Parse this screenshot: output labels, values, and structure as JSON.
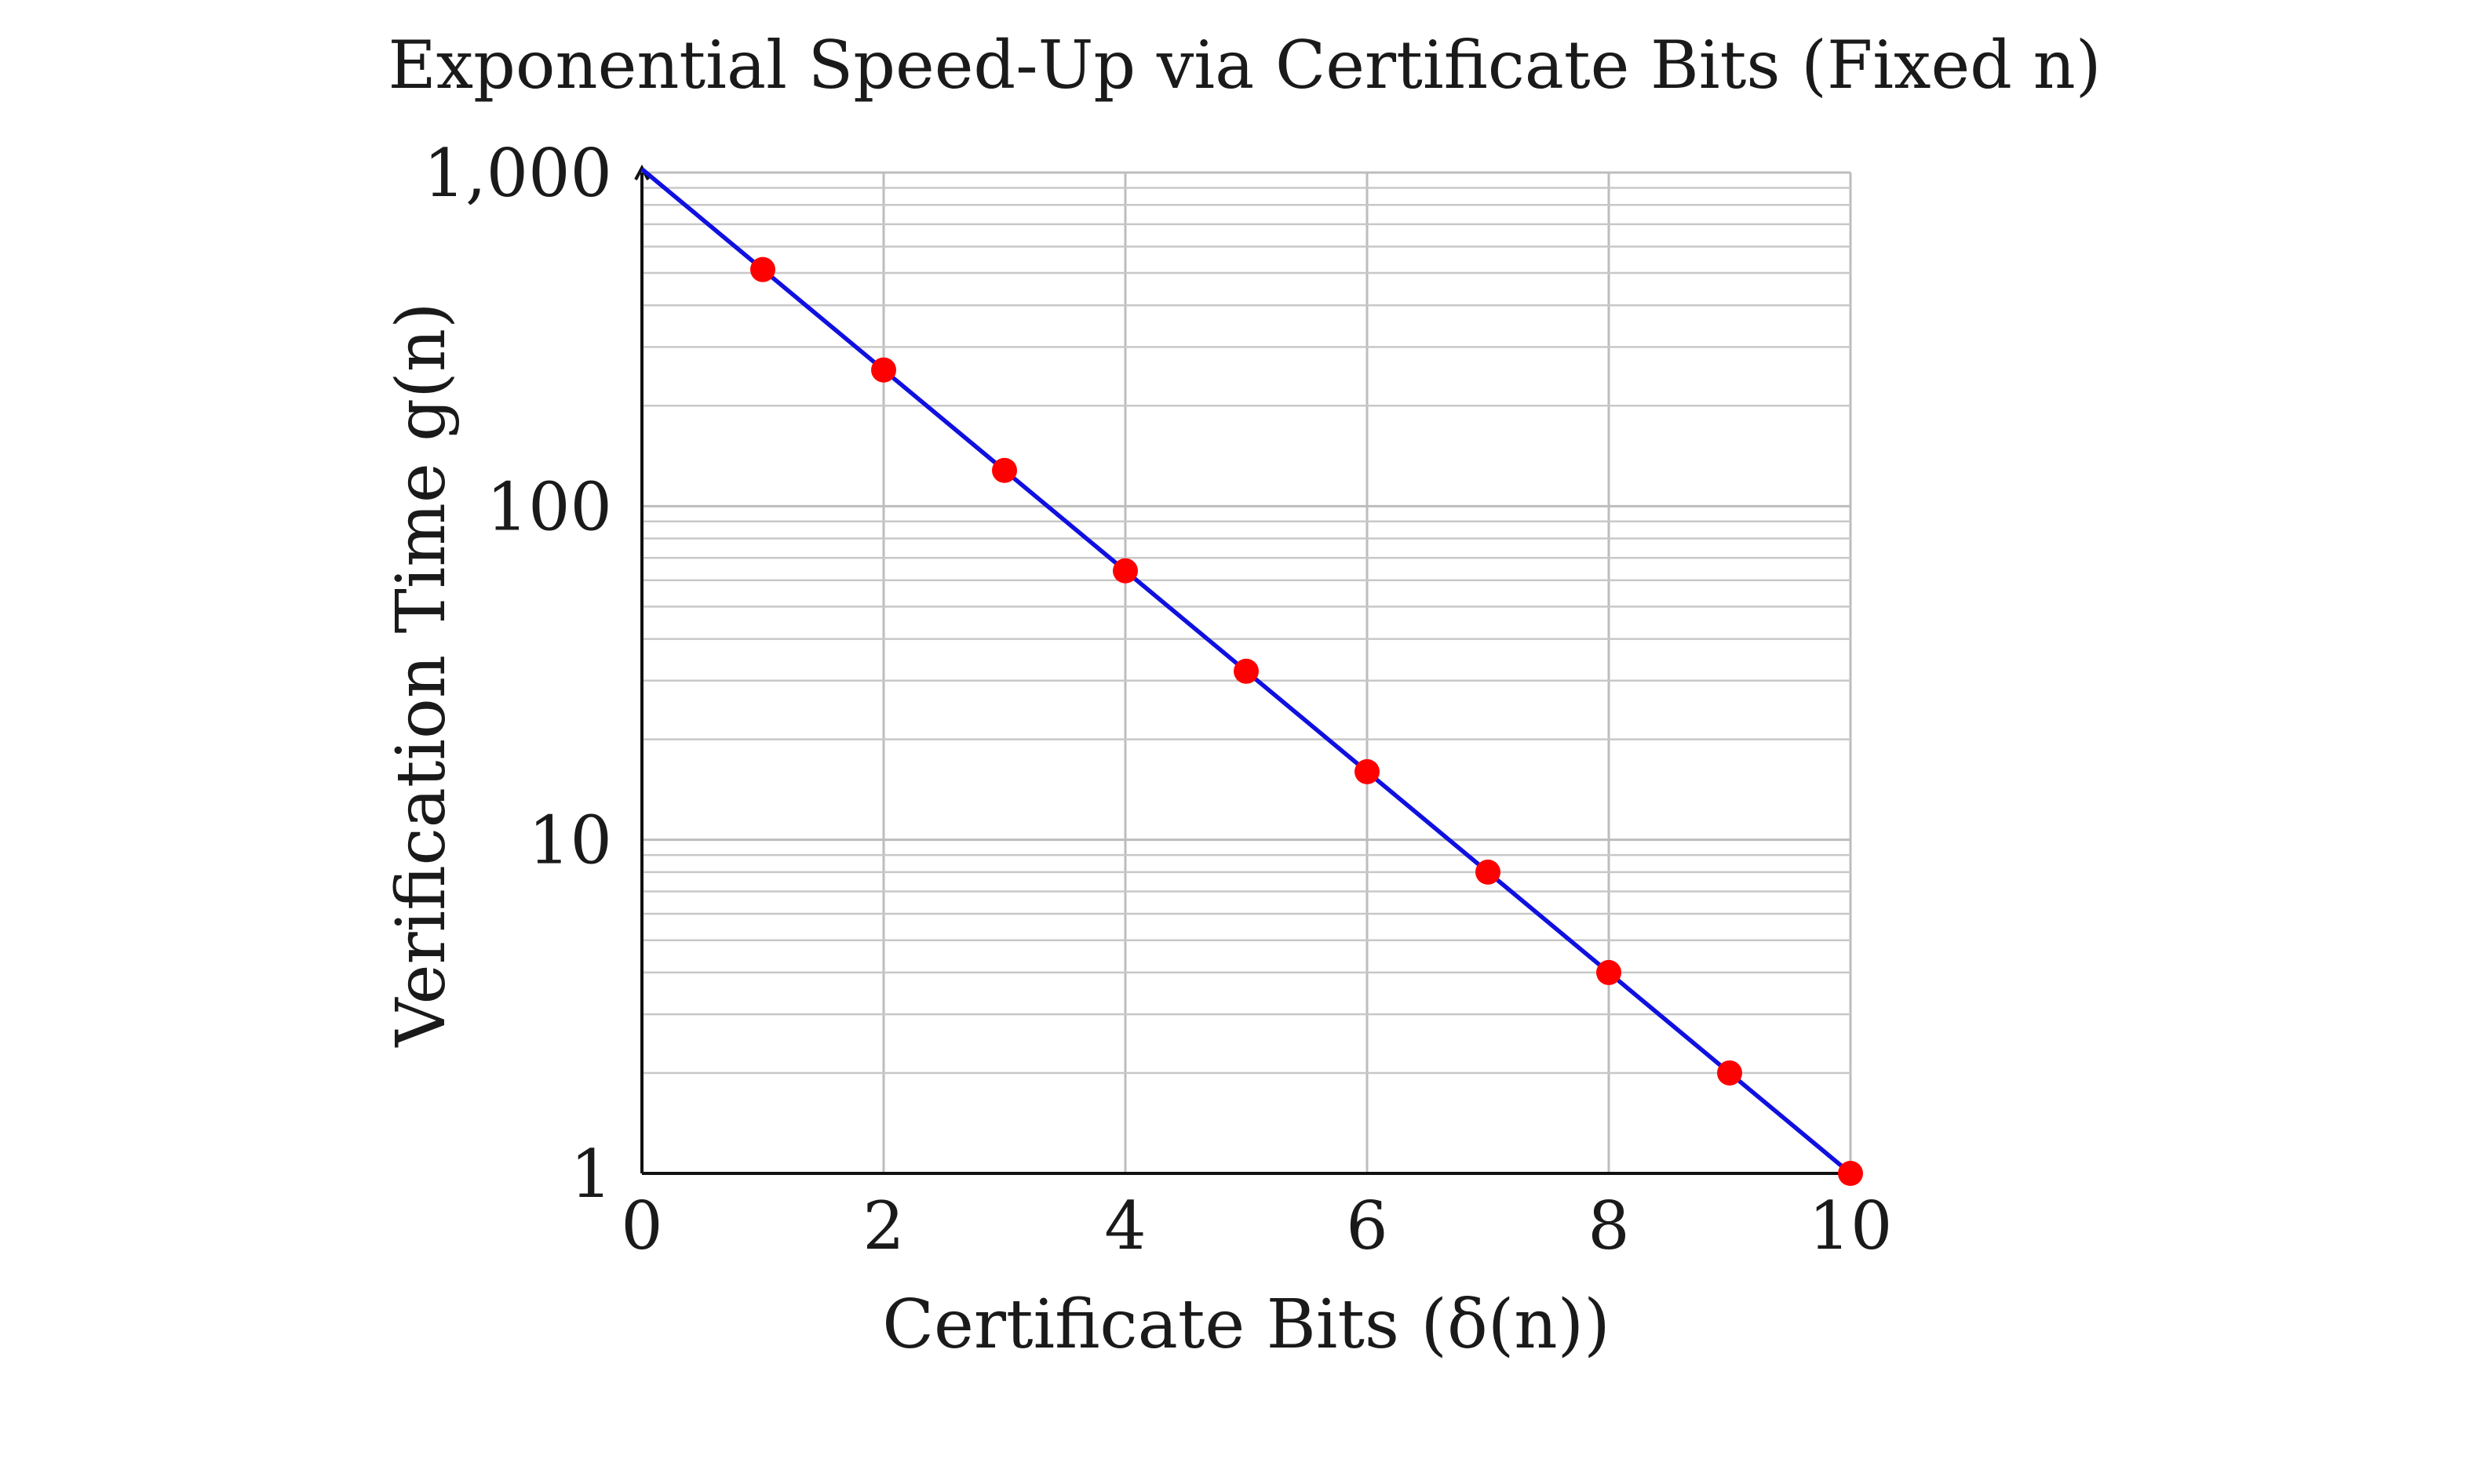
{
  "chart_data": {
    "type": "line",
    "title": "Exponential Speed-Up via Certificate Bits (Fixed n)",
    "xlabel": "Certificate Bits (δ(n))",
    "ylabel": "Verification Time g(n)",
    "xlim": [
      0,
      10
    ],
    "ylim": [
      1,
      1000
    ],
    "yscale": "log",
    "grid": true,
    "x_ticks": [
      0,
      2,
      4,
      6,
      8,
      10
    ],
    "x_tick_labels": [
      "0",
      "2",
      "4",
      "6",
      "8",
      "10"
    ],
    "y_ticks": [
      1,
      10,
      100,
      1000
    ],
    "y_tick_labels": [
      "1",
      "10",
      "100",
      "1,000"
    ],
    "series": [
      {
        "x": [
          0,
          1,
          2,
          3,
          4,
          5,
          6,
          7,
          8,
          9,
          10
        ],
        "y": [
          1024,
          512,
          256,
          128,
          64,
          32,
          16,
          8,
          4,
          2,
          1
        ],
        "line_color": "#1010e0",
        "marker_color": "#ff0000",
        "marker_x": [
          1,
          2,
          3,
          4,
          5,
          6,
          7,
          8,
          9,
          10
        ]
      }
    ]
  }
}
